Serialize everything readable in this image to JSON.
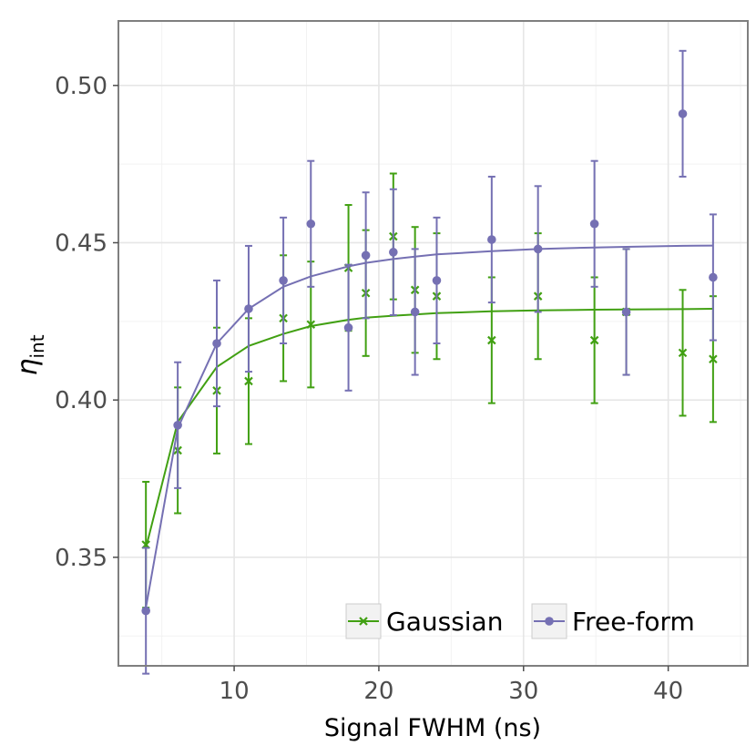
{
  "chart_data": {
    "type": "scatter",
    "xlabel": "Signal FWHM (ns)",
    "ylabel_main": "η",
    "ylabel_sub": "int",
    "xlim": [
      2,
      45.5
    ],
    "ylim": [
      0.3155,
      0.5205
    ],
    "x_ticks": [
      10,
      20,
      30,
      40
    ],
    "x_tick_labels": [
      "10",
      "20",
      "30",
      "40"
    ],
    "y_ticks": [
      0.35,
      0.4,
      0.45,
      0.5
    ],
    "y_tick_labels": [
      "0.35",
      "0.40",
      "0.45",
      "0.50"
    ],
    "grid": true,
    "legend_position": "bottom-right",
    "series": [
      {
        "name": "Gaussian",
        "color": "#41a012",
        "marker": "x",
        "points": [
          {
            "x": 3.9,
            "y": 0.354,
            "err": 0.02
          },
          {
            "x": 6.1,
            "y": 0.384,
            "err": 0.02
          },
          {
            "x": 8.8,
            "y": 0.403,
            "err": 0.02
          },
          {
            "x": 11.0,
            "y": 0.406,
            "err": 0.02
          },
          {
            "x": 13.4,
            "y": 0.426,
            "err": 0.02
          },
          {
            "x": 15.3,
            "y": 0.424,
            "err": 0.02
          },
          {
            "x": 17.9,
            "y": 0.442,
            "err": 0.02
          },
          {
            "x": 19.1,
            "y": 0.434,
            "err": 0.02
          },
          {
            "x": 21.0,
            "y": 0.452,
            "err": 0.02
          },
          {
            "x": 22.5,
            "y": 0.435,
            "err": 0.02
          },
          {
            "x": 24.0,
            "y": 0.433,
            "err": 0.02
          },
          {
            "x": 27.8,
            "y": 0.419,
            "err": 0.02
          },
          {
            "x": 31.0,
            "y": 0.433,
            "err": 0.02
          },
          {
            "x": 34.9,
            "y": 0.419,
            "err": 0.02
          },
          {
            "x": 37.1,
            "y": 0.428,
            "err": 0.02
          },
          {
            "x": 41.0,
            "y": 0.415,
            "err": 0.02
          },
          {
            "x": 43.1,
            "y": 0.413,
            "err": 0.02
          }
        ],
        "fit": {
          "x": [
            3.9,
            6.1,
            8.8,
            11.0,
            13.4,
            15.3,
            17.9,
            19.1,
            21.0,
            22.5,
            24.0,
            27.8,
            31.0,
            34.9,
            37.1,
            41.0,
            43.1
          ],
          "y": [
            0.353,
            0.393,
            0.4105,
            0.4172,
            0.421,
            0.4235,
            0.4255,
            0.4262,
            0.4268,
            0.4272,
            0.4276,
            0.4282,
            0.4285,
            0.4287,
            0.4288,
            0.4289,
            0.429
          ]
        }
      },
      {
        "name": "Free-form",
        "color": "#7570b3",
        "marker": "o",
        "points": [
          {
            "x": 3.9,
            "y": 0.333,
            "err": 0.02
          },
          {
            "x": 6.1,
            "y": 0.392,
            "err": 0.02
          },
          {
            "x": 8.8,
            "y": 0.418,
            "err": 0.02
          },
          {
            "x": 11.0,
            "y": 0.429,
            "err": 0.02
          },
          {
            "x": 13.4,
            "y": 0.438,
            "err": 0.02
          },
          {
            "x": 15.3,
            "y": 0.456,
            "err": 0.02
          },
          {
            "x": 17.9,
            "y": 0.423,
            "err": 0.02
          },
          {
            "x": 19.1,
            "y": 0.446,
            "err": 0.02
          },
          {
            "x": 21.0,
            "y": 0.447,
            "err": 0.02
          },
          {
            "x": 22.5,
            "y": 0.428,
            "err": 0.02
          },
          {
            "x": 24.0,
            "y": 0.438,
            "err": 0.02
          },
          {
            "x": 27.8,
            "y": 0.451,
            "err": 0.02
          },
          {
            "x": 31.0,
            "y": 0.448,
            "err": 0.02
          },
          {
            "x": 34.9,
            "y": 0.456,
            "err": 0.02
          },
          {
            "x": 37.1,
            "y": 0.428,
            "err": 0.02
          },
          {
            "x": 41.0,
            "y": 0.491,
            "err": 0.02
          },
          {
            "x": 43.1,
            "y": 0.439,
            "err": 0.02
          }
        ],
        "fit": {
          "x": [
            3.9,
            6.1,
            8.8,
            11.0,
            13.4,
            15.3,
            17.9,
            19.1,
            21.0,
            22.5,
            24.0,
            27.8,
            31.0,
            34.9,
            37.1,
            41.0,
            43.1
          ],
          "y": [
            0.334,
            0.391,
            0.418,
            0.429,
            0.436,
            0.4393,
            0.4425,
            0.4436,
            0.4448,
            0.4456,
            0.4463,
            0.4473,
            0.448,
            0.4485,
            0.4487,
            0.449,
            0.4491
          ]
        }
      }
    ]
  }
}
